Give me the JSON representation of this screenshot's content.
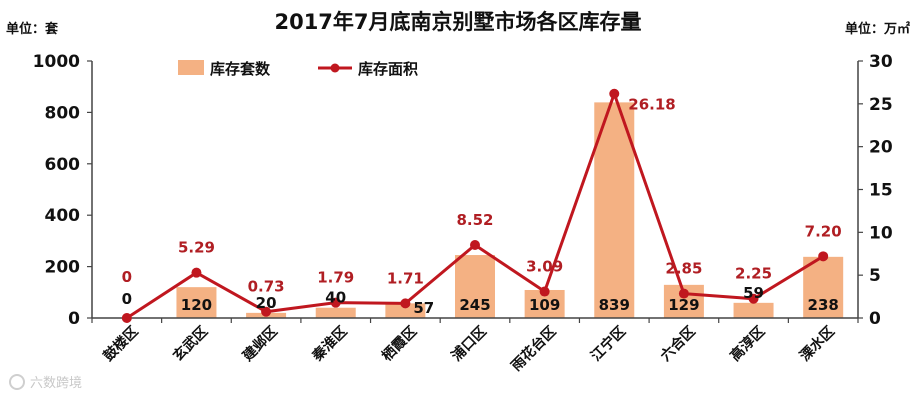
{
  "watermark": "六数跨境",
  "colors": {
    "bar": "#f4b183",
    "line": "#c0171f",
    "axis": "#444444"
  },
  "chart_data": {
    "type": "bar",
    "title": "2017年7月底南京别墅市场各区库存量",
    "left_unit": "单位：套",
    "right_unit": "单位：万㎡",
    "categories": [
      "鼓楼区",
      "玄武区",
      "建邺区",
      "秦淮区",
      "栖霞区",
      "浦口区",
      "雨花台区",
      "江宁区",
      "六合区",
      "高淳区",
      "溧水区"
    ],
    "ylim": [
      0,
      1000
    ],
    "yticks": [
      "0",
      "200",
      "400",
      "600",
      "800",
      "1000"
    ],
    "y2lim": [
      0,
      30
    ],
    "y2ticks": [
      "0",
      "5",
      "10",
      "15",
      "20",
      "25",
      "30"
    ],
    "legend_position": "top-left",
    "grid": false,
    "series": [
      {
        "name": "库存套数",
        "type": "bar",
        "axis": "left",
        "values": [
          0,
          120,
          20,
          40,
          57,
          245,
          109,
          839,
          129,
          59,
          238
        ],
        "labels": [
          "0",
          "120",
          "20",
          "40",
          "57",
          "245",
          "109",
          "839",
          "129",
          "59",
          "238"
        ]
      },
      {
        "name": "库存面积",
        "type": "line",
        "axis": "right",
        "values": [
          0,
          5.29,
          0.73,
          1.79,
          1.71,
          8.52,
          3.09,
          26.18,
          2.85,
          2.25,
          7.2
        ],
        "labels": [
          "0",
          "5.29",
          "0.73",
          "1.79",
          "1.71",
          "8.52",
          "3.09",
          "26.18",
          "2.85",
          "2.25",
          "7.20"
        ]
      }
    ]
  }
}
